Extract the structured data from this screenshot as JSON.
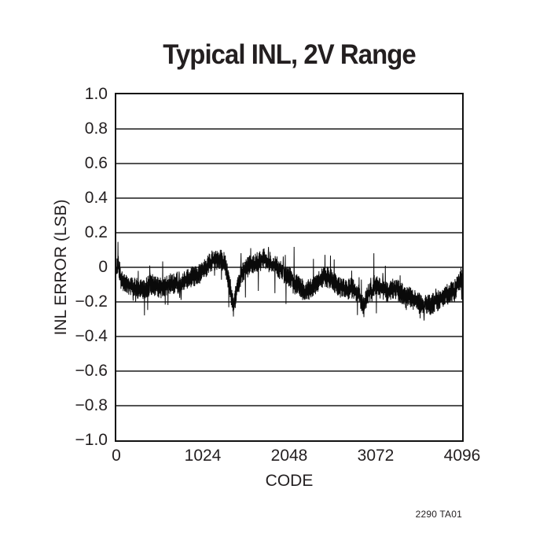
{
  "figure": {
    "note": "2290 TA01"
  },
  "chart_data": {
    "type": "line",
    "title": "Typical INL, 2V Range",
    "xlabel": "CODE",
    "ylabel": "INL ERROR (LSB)",
    "xlim": [
      0,
      4096
    ],
    "ylim": [
      -1.0,
      1.0
    ],
    "grid": "horizontal-only",
    "legend": "none",
    "line_color": "#0a0a0a",
    "xticks": {
      "values": [
        0,
        1024,
        2048,
        3072,
        4096
      ],
      "labels": [
        "0",
        "1024",
        "2048",
        "3072",
        "4096"
      ]
    },
    "yticks": {
      "values": [
        1.0,
        0.8,
        0.6,
        0.4,
        0.2,
        0.0,
        -0.2,
        -0.4,
        -0.6,
        -0.8,
        -1.0
      ],
      "labels": [
        "1.0",
        "0.8",
        "0.6",
        "0.4",
        "0.2",
        "0",
        "−0.2",
        "−0.4",
        "−0.6",
        "−0.8",
        "−1.0"
      ]
    },
    "series": [
      {
        "name": "INL error",
        "description": "High-frequency noisy trace; mean trend sampled below (code, LSB), noise ±0.05 LSB typical with occasional ±0.13 LSB spikes",
        "noise_half_amplitude_lsb": 0.05,
        "spike_half_amplitude_lsb": 0.13,
        "trend": [
          [
            0,
            -0.02
          ],
          [
            20,
            0.03
          ],
          [
            60,
            -0.08
          ],
          [
            140,
            -0.1
          ],
          [
            220,
            -0.12
          ],
          [
            300,
            -0.13
          ],
          [
            420,
            -0.1
          ],
          [
            520,
            -0.12
          ],
          [
            640,
            -0.09
          ],
          [
            760,
            -0.1
          ],
          [
            880,
            -0.06
          ],
          [
            980,
            -0.04
          ],
          [
            1060,
            0.0
          ],
          [
            1140,
            0.04
          ],
          [
            1220,
            0.05
          ],
          [
            1290,
            0.02
          ],
          [
            1340,
            -0.1
          ],
          [
            1390,
            -0.23
          ],
          [
            1430,
            -0.12
          ],
          [
            1500,
            -0.02
          ],
          [
            1580,
            0.01
          ],
          [
            1680,
            0.03
          ],
          [
            1760,
            0.05
          ],
          [
            1840,
            0.02
          ],
          [
            1920,
            0.0
          ],
          [
            2000,
            -0.04
          ],
          [
            2080,
            -0.06
          ],
          [
            2160,
            -0.11
          ],
          [
            2240,
            -0.14
          ],
          [
            2320,
            -0.12
          ],
          [
            2400,
            -0.08
          ],
          [
            2480,
            -0.05
          ],
          [
            2560,
            -0.08
          ],
          [
            2640,
            -0.11
          ],
          [
            2720,
            -0.13
          ],
          [
            2800,
            -0.12
          ],
          [
            2870,
            -0.15
          ],
          [
            2930,
            -0.23
          ],
          [
            2990,
            -0.15
          ],
          [
            3060,
            -0.1
          ],
          [
            3140,
            -0.13
          ],
          [
            3220,
            -0.14
          ],
          [
            3300,
            -0.12
          ],
          [
            3380,
            -0.15
          ],
          [
            3460,
            -0.17
          ],
          [
            3540,
            -0.19
          ],
          [
            3620,
            -0.22
          ],
          [
            3700,
            -0.22
          ],
          [
            3780,
            -0.2
          ],
          [
            3860,
            -0.18
          ],
          [
            3940,
            -0.15
          ],
          [
            4010,
            -0.13
          ],
          [
            4060,
            -0.09
          ],
          [
            4096,
            -0.05
          ]
        ]
      }
    ]
  }
}
